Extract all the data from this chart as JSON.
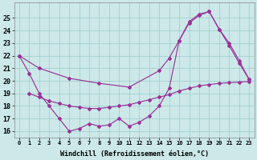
{
  "background_color": "#cce8e8",
  "grid_color": "#99cccc",
  "line_color": "#993399",
  "xlabel": "Windchill (Refroidissement éolien,°C)",
  "ylim": [
    15.5,
    26.2
  ],
  "xlim": [
    -0.5,
    23.5
  ],
  "yticks": [
    16,
    17,
    18,
    19,
    20,
    21,
    22,
    23,
    24,
    25
  ],
  "line_A_x": [
    0,
    1,
    2,
    3,
    4,
    5,
    6,
    7,
    8,
    9,
    10,
    11,
    12,
    13,
    14,
    15,
    16,
    17,
    18,
    19,
    20,
    21,
    22,
    23
  ],
  "line_A_y": [
    22.0,
    20.6,
    19.0,
    18.0,
    17.0,
    16.0,
    16.2,
    16.6,
    16.4,
    16.5,
    17.0,
    16.4,
    16.7,
    17.2,
    18.0,
    19.4,
    23.2,
    24.7,
    25.3,
    25.5,
    24.1,
    23.0,
    21.6,
    20.1
  ],
  "line_B_x": [
    0,
    2,
    5,
    8,
    11,
    14,
    15,
    16,
    17,
    18,
    19,
    20,
    21,
    22,
    23
  ],
  "line_B_y": [
    22.0,
    21.0,
    20.2,
    19.8,
    19.5,
    20.8,
    21.8,
    23.2,
    24.6,
    25.2,
    25.5,
    24.1,
    22.8,
    21.4,
    20.1
  ],
  "line_C_x": [
    1,
    2,
    3,
    4,
    5,
    6,
    7,
    8,
    9,
    10,
    11,
    12,
    13,
    14,
    15,
    16,
    17,
    18,
    19,
    20,
    21,
    22,
    23
  ],
  "line_C_y": [
    19.0,
    18.7,
    18.4,
    18.2,
    18.0,
    17.9,
    17.8,
    17.8,
    17.9,
    18.0,
    18.1,
    18.3,
    18.5,
    18.7,
    18.9,
    19.2,
    19.4,
    19.6,
    19.7,
    19.8,
    19.85,
    19.9,
    19.95
  ]
}
